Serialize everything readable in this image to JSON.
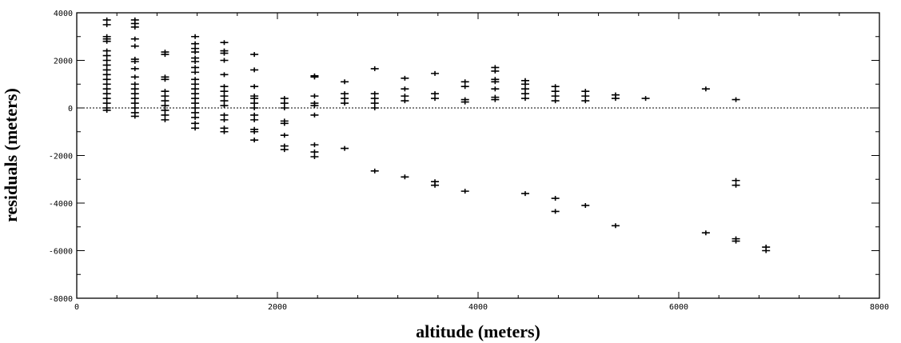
{
  "chart_data": {
    "type": "scatter",
    "marker": "plus",
    "xlabel": "altitude (meters)",
    "ylabel": "residuals (meters)",
    "xlim": [
      0,
      8000
    ],
    "ylim": [
      -8000,
      4000
    ],
    "x_ticks": [
      0,
      2000,
      4000,
      6000,
      8000
    ],
    "y_ticks": [
      -8000,
      -6000,
      -4000,
      -2000,
      0,
      2000,
      4000
    ],
    "grid": false,
    "reference_line": {
      "y": 0,
      "style": "dotted"
    },
    "points": [
      [
        300,
        3700
      ],
      [
        300,
        3500
      ],
      [
        300,
        3000
      ],
      [
        300,
        2900
      ],
      [
        300,
        2800
      ],
      [
        300,
        2400
      ],
      [
        300,
        2200
      ],
      [
        300,
        2000
      ],
      [
        300,
        1800
      ],
      [
        300,
        1600
      ],
      [
        300,
        1400
      ],
      [
        300,
        1200
      ],
      [
        300,
        1000
      ],
      [
        300,
        800
      ],
      [
        300,
        600
      ],
      [
        300,
        400
      ],
      [
        300,
        200
      ],
      [
        300,
        0
      ],
      [
        300,
        -100
      ],
      [
        580,
        3700
      ],
      [
        580,
        3550
      ],
      [
        580,
        3400
      ],
      [
        580,
        2900
      ],
      [
        580,
        2600
      ],
      [
        580,
        2050
      ],
      [
        580,
        1950
      ],
      [
        580,
        1650
      ],
      [
        580,
        1300
      ],
      [
        580,
        1000
      ],
      [
        580,
        800
      ],
      [
        580,
        600
      ],
      [
        580,
        400
      ],
      [
        580,
        200
      ],
      [
        580,
        0
      ],
      [
        580,
        -200
      ],
      [
        580,
        -350
      ],
      [
        880,
        2350
      ],
      [
        880,
        2250
      ],
      [
        880,
        1300
      ],
      [
        880,
        1200
      ],
      [
        880,
        700
      ],
      [
        880,
        500
      ],
      [
        880,
        300
      ],
      [
        880,
        100
      ],
      [
        880,
        -100
      ],
      [
        880,
        -300
      ],
      [
        880,
        -500
      ],
      [
        1180,
        3000
      ],
      [
        1180,
        2700
      ],
      [
        1180,
        2500
      ],
      [
        1180,
        2350
      ],
      [
        1180,
        2100
      ],
      [
        1180,
        1950
      ],
      [
        1180,
        1700
      ],
      [
        1180,
        1500
      ],
      [
        1180,
        1200
      ],
      [
        1180,
        1000
      ],
      [
        1180,
        800
      ],
      [
        1180,
        600
      ],
      [
        1180,
        400
      ],
      [
        1180,
        200
      ],
      [
        1180,
        0
      ],
      [
        1180,
        -200
      ],
      [
        1180,
        -400
      ],
      [
        1180,
        -650
      ],
      [
        1180,
        -850
      ],
      [
        1470,
        2750
      ],
      [
        1470,
        2400
      ],
      [
        1470,
        2300
      ],
      [
        1470,
        2000
      ],
      [
        1470,
        1400
      ],
      [
        1470,
        900
      ],
      [
        1470,
        700
      ],
      [
        1470,
        500
      ],
      [
        1470,
        300
      ],
      [
        1470,
        100
      ],
      [
        1470,
        -300
      ],
      [
        1470,
        -500
      ],
      [
        1470,
        -850
      ],
      [
        1470,
        -1000
      ],
      [
        1770,
        2250
      ],
      [
        1770,
        1600
      ],
      [
        1770,
        900
      ],
      [
        1770,
        500
      ],
      [
        1770,
        400
      ],
      [
        1770,
        200
      ],
      [
        1770,
        0
      ],
      [
        1770,
        -300
      ],
      [
        1770,
        -500
      ],
      [
        1770,
        -900
      ],
      [
        1770,
        -1000
      ],
      [
        1770,
        -1350
      ],
      [
        2070,
        400
      ],
      [
        2070,
        200
      ],
      [
        2070,
        0
      ],
      [
        2070,
        -550
      ],
      [
        2070,
        -650
      ],
      [
        2070,
        -1150
      ],
      [
        2070,
        -1600
      ],
      [
        2070,
        -1750
      ],
      [
        2370,
        1350
      ],
      [
        2370,
        1300
      ],
      [
        2370,
        500
      ],
      [
        2370,
        200
      ],
      [
        2370,
        100
      ],
      [
        2370,
        -300
      ],
      [
        2370,
        -1550
      ],
      [
        2370,
        -1850
      ],
      [
        2370,
        -2050
      ],
      [
        2670,
        1100
      ],
      [
        2670,
        600
      ],
      [
        2670,
        400
      ],
      [
        2670,
        200
      ],
      [
        2670,
        -1700
      ],
      [
        2970,
        1650
      ],
      [
        2970,
        600
      ],
      [
        2970,
        400
      ],
      [
        2970,
        200
      ],
      [
        2970,
        0
      ],
      [
        2970,
        -2650
      ],
      [
        3270,
        1250
      ],
      [
        3270,
        800
      ],
      [
        3270,
        500
      ],
      [
        3270,
        300
      ],
      [
        3270,
        -2900
      ],
      [
        3570,
        1450
      ],
      [
        3570,
        600
      ],
      [
        3570,
        400
      ],
      [
        3570,
        -3100
      ],
      [
        3570,
        -3250
      ],
      [
        3870,
        1100
      ],
      [
        3870,
        900
      ],
      [
        3870,
        350
      ],
      [
        3870,
        250
      ],
      [
        3870,
        -3500
      ],
      [
        4170,
        1700
      ],
      [
        4170,
        1550
      ],
      [
        4170,
        1200
      ],
      [
        4170,
        1100
      ],
      [
        4170,
        800
      ],
      [
        4170,
        450
      ],
      [
        4170,
        350
      ],
      [
        4470,
        1150
      ],
      [
        4470,
        1000
      ],
      [
        4470,
        800
      ],
      [
        4470,
        600
      ],
      [
        4470,
        400
      ],
      [
        4470,
        -3600
      ],
      [
        4770,
        900
      ],
      [
        4770,
        700
      ],
      [
        4770,
        500
      ],
      [
        4770,
        300
      ],
      [
        4770,
        -3800
      ],
      [
        4770,
        -4350
      ],
      [
        5070,
        700
      ],
      [
        5070,
        500
      ],
      [
        5070,
        300
      ],
      [
        5070,
        -4100
      ],
      [
        5370,
        550
      ],
      [
        5370,
        400
      ],
      [
        5370,
        -4950
      ],
      [
        5670,
        400
      ],
      [
        6270,
        800
      ],
      [
        6270,
        -5250
      ],
      [
        6570,
        350
      ],
      [
        6570,
        -3050
      ],
      [
        6570,
        -3250
      ],
      [
        6570,
        -5500
      ],
      [
        6570,
        -5600
      ],
      [
        6870,
        -5850
      ],
      [
        6870,
        -6000
      ]
    ]
  }
}
